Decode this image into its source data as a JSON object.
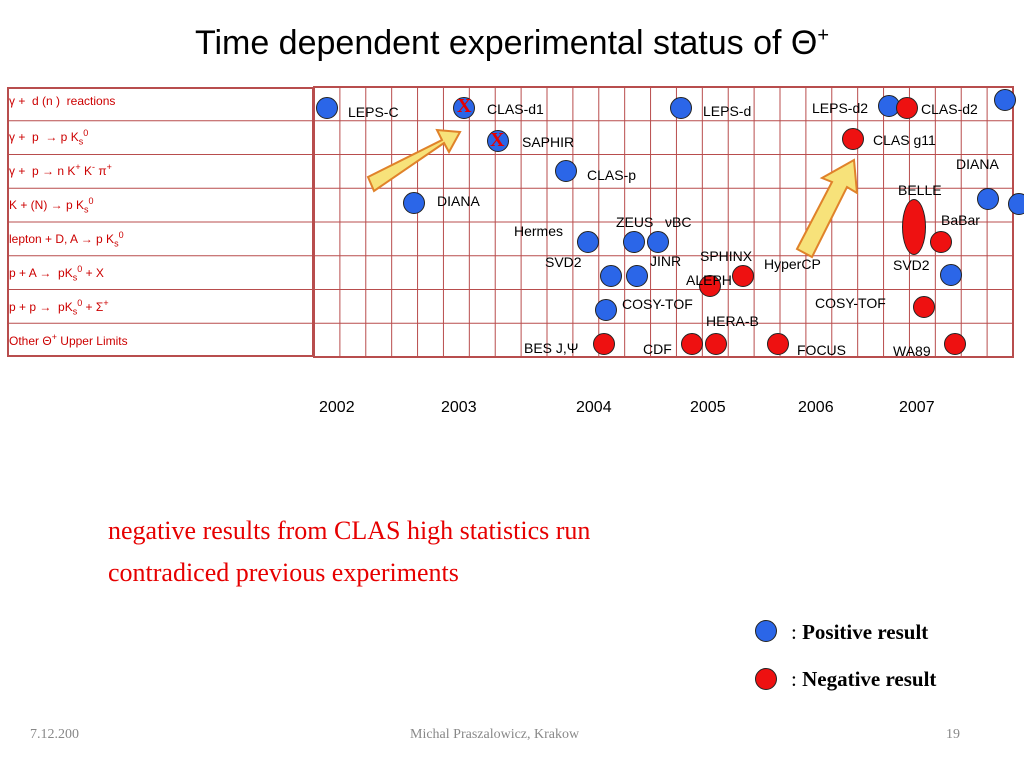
{
  "title": {
    "text": "Time dependent experimental status of ",
    "symbol": "Θ",
    "sup": "+"
  },
  "rows": [
    "γ +  d (n )  reactions",
    "γ +  p  → p Ks0",
    "γ +  p → n K+ K- π+",
    "K + (N) → p Ks0",
    "lepton + D, A → p Ks0",
    "p + A →  pKs0 + X",
    "p + p →  pKs0 + Σ+",
    "Other Θ+ Upper Limits"
  ],
  "years": [
    "2002",
    "2003",
    "2004",
    "2005",
    "2006",
    "2007"
  ],
  "experiments": [
    {
      "name": "LEPS-C",
      "result": "positive"
    },
    {
      "name": "CLAS-d1",
      "result": "positive",
      "mark": "X"
    },
    {
      "name": "LEPS-d",
      "result": "positive"
    },
    {
      "name": "LEPS-d2",
      "result": "positive"
    },
    {
      "name": "CLAS-d2",
      "result": "negative"
    },
    {
      "name": "SAPHIR",
      "result": "positive",
      "mark": "X"
    },
    {
      "name": "CLAS g11",
      "result": "negative"
    },
    {
      "name": "CLAS-p",
      "result": "positive"
    },
    {
      "name": "DIANA",
      "result": "positive"
    },
    {
      "name": "DIANA",
      "result": "positive"
    },
    {
      "name": "BELLE",
      "result": "negative"
    },
    {
      "name": "BaBar",
      "result": "negative"
    },
    {
      "name": "Hermes",
      "result": "positive"
    },
    {
      "name": "ZEUS",
      "result": "positive"
    },
    {
      "name": "νBC",
      "result": "positive"
    },
    {
      "name": "SVD2",
      "result": "positive"
    },
    {
      "name": "JINR",
      "result": "positive"
    },
    {
      "name": "SPHINX",
      "result": "negative"
    },
    {
      "name": "ALEPH",
      "result": "negative"
    },
    {
      "name": "HyperCP",
      "result": "negative"
    },
    {
      "name": "SVD2",
      "result": "positive"
    },
    {
      "name": "COSY-TOF",
      "result": "positive"
    },
    {
      "name": "COSY-TOF",
      "result": "negative"
    },
    {
      "name": "HERA-B",
      "result": "negative"
    },
    {
      "name": "BES J,Ψ",
      "result": "negative"
    },
    {
      "name": "CDF",
      "result": "negative"
    },
    {
      "name": "FOCUS",
      "result": "negative"
    },
    {
      "name": "WA89",
      "result": "negative"
    }
  ],
  "note": {
    "line1": "negative results from CLAS high statistics run",
    "line2": "contradiced previous experiments"
  },
  "legend": {
    "positive": {
      "prefix": ": ",
      "label": "Positive result"
    },
    "negative": {
      "prefix": ": ",
      "label": "Negative result"
    }
  },
  "footer": {
    "date": "7.12.200",
    "author": "Michal Praszalowicz, Krakow",
    "page": "19"
  },
  "colors": {
    "positive": "#2b66e8",
    "negative": "#ee1111",
    "grid": "#b84d4d",
    "rowlabel": "#cc0000",
    "note": "#e60000",
    "arrow_fill": "#f7e27a",
    "arrow_stroke": "#e0822a"
  }
}
